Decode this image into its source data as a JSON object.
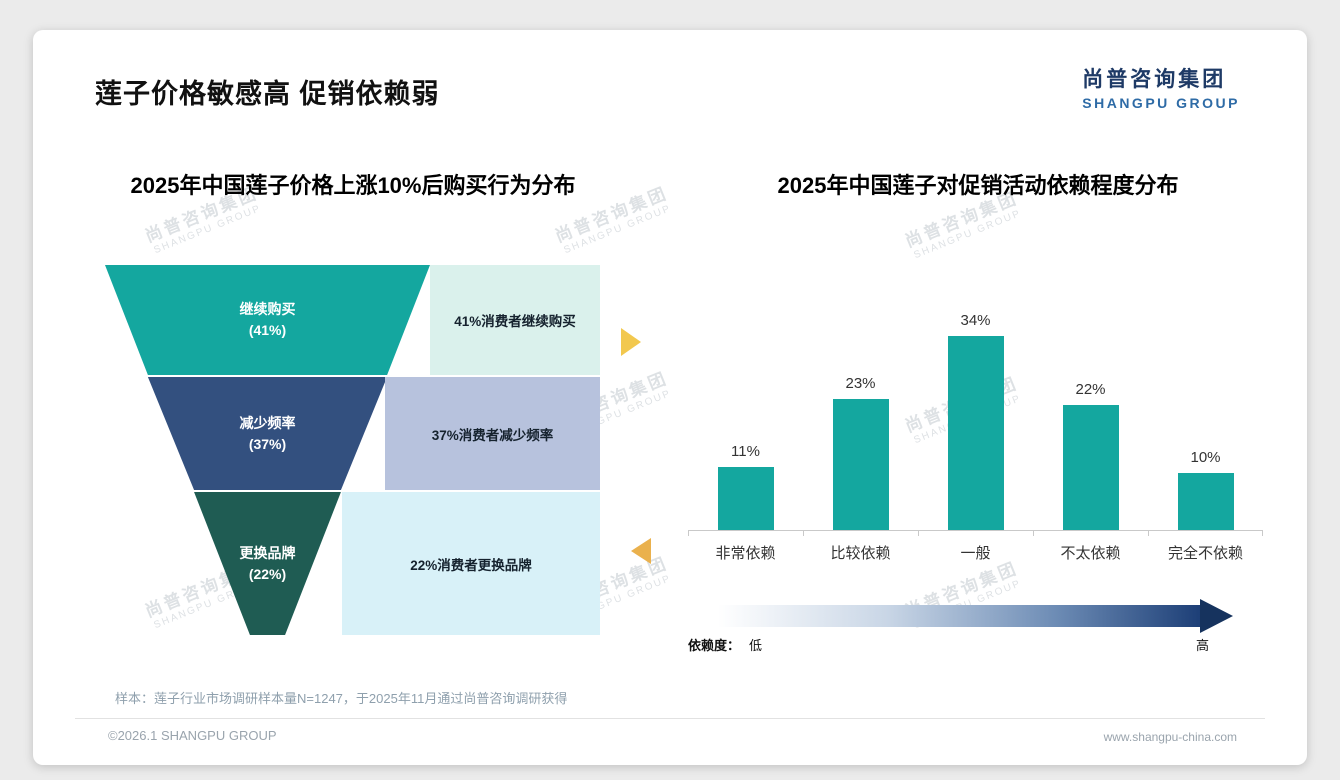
{
  "header": {
    "title": "莲子价格敏感高 促销依赖弱",
    "logo_cn": "尚普咨询集团",
    "logo_en": "SHANGPU GROUP"
  },
  "watermark": {
    "cn": "尚普咨询集团",
    "en": "SHANGPU GROUP"
  },
  "colors": {
    "accent_teal": "#14a79f",
    "funnel_navy": "#33507f",
    "funnel_green": "#1f5c53",
    "desc_mint": "#daf1ec",
    "desc_lavender": "#b7c2dd",
    "desc_cyan": "#d8f1f8",
    "arrow_gold": "#f2c84e",
    "logo_navy": "#1e3a66",
    "logo_blue": "#2e6ba6",
    "gradient_dark": "#1d3f77"
  },
  "chart_data": [
    {
      "type": "funnel",
      "title": "2025年中国莲子价格上涨10%后购买行为分布",
      "segments": [
        {
          "label": "继续购买",
          "pct_label": "(41%)",
          "value": 41,
          "desc": "41%消费者继续购买"
        },
        {
          "label": "减少频率",
          "pct_label": "(37%)",
          "value": 37,
          "desc": "37%消费者减少频率"
        },
        {
          "label": "更换品牌",
          "pct_label": "(22%)",
          "value": 22,
          "desc": "22%消费者更换品牌"
        }
      ]
    },
    {
      "type": "bar",
      "title": "2025年中国莲子对促销活动依赖程度分布",
      "categories": [
        "非常依赖",
        "比较依赖",
        "一般",
        "不太依赖",
        "完全不依赖"
      ],
      "values": [
        11,
        23,
        34,
        22,
        10
      ],
      "value_labels": [
        "11%",
        "23%",
        "34%",
        "22%",
        "10%"
      ],
      "ylim": [
        0,
        40
      ],
      "legend": {
        "label": "依赖度：",
        "low": "低",
        "high": "高"
      }
    }
  ],
  "footnote": "样本：莲子行业市场调研样本量N=1247，于2025年11月通过尚普咨询调研获得",
  "footer": {
    "left": "©2026.1 SHANGPU GROUP",
    "right": "www.shangpu-china.com"
  }
}
